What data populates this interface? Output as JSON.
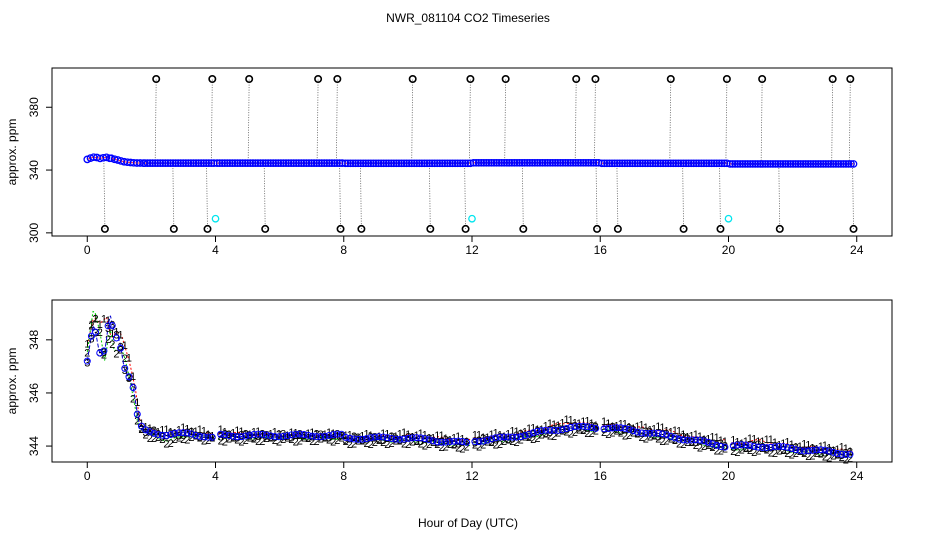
{
  "figure": {
    "title": "NWR_081104  CO2 Timeseries",
    "xlabel": "Hour of Day (UTC)"
  },
  "chart_data": [
    {
      "type": "scatter",
      "title": "NWR_081104  CO2 Timeseries",
      "xlabel": "",
      "ylabel": "approx. ppm",
      "xlim": [
        -1.1,
        25.1
      ],
      "ylim": [
        298,
        405
      ],
      "xticks": [
        0,
        4,
        8,
        12,
        16,
        20,
        24
      ],
      "yticks": [
        300,
        340,
        380
      ],
      "grid": false,
      "series": [
        {
          "color": "#0000ff",
          "marker": "o",
          "segments": [
            {
              "x0": 0.0,
              "x1": 0.7,
              "values": [
                346.8,
                347.6,
                348.2,
                348.0,
                347.4,
                347.8,
                348.1,
                347.5
              ]
            },
            {
              "x0": 0.75,
              "x1": 1.75,
              "values": [
                347.5,
                346.9,
                346.4,
                345.8,
                345.3,
                345.0,
                344.8,
                344.6,
                344.5,
                344.5,
                344.4
              ]
            },
            {
              "x0": 1.8,
              "x1": 3.95,
              "level": 344.4,
              "n": 28
            },
            {
              "x0": 4.05,
              "x1": 7.95,
              "level": 344.4,
              "n": 50
            },
            {
              "x0": 8.05,
              "x1": 11.95,
              "level": 344.3,
              "n": 50
            },
            {
              "x0": 12.05,
              "x1": 15.95,
              "level": 344.6,
              "n": 50
            },
            {
              "x0": 16.05,
              "x1": 19.95,
              "level": 344.3,
              "n": 50
            },
            {
              "x0": 20.05,
              "x1": 23.9,
              "level": 343.9,
              "n": 50
            }
          ]
        },
        {
          "color": "#000000",
          "marker": "o",
          "spikes_high": [
            2.15,
            3.9,
            5.05,
            7.2,
            7.8,
            10.15,
            11.95,
            13.05,
            15.25,
            15.85,
            18.2,
            19.95,
            21.05,
            23.25,
            23.8
          ],
          "spikes_low": [
            0.55,
            2.7,
            3.75,
            5.55,
            7.9,
            8.55,
            10.7,
            11.8,
            13.6,
            15.9,
            16.55,
            18.6,
            19.75,
            21.6,
            23.9
          ],
          "high_value": 398,
          "low_value": 302.5
        },
        {
          "color": "#00e5ee",
          "marker": "o",
          "x": [
            4.0,
            12.0,
            20.0
          ],
          "y": [
            309,
            309,
            309
          ]
        }
      ]
    },
    {
      "type": "scatter",
      "title": "",
      "xlabel": "",
      "ylabel": "approx. ppm",
      "xlim": [
        -1.1,
        25.1
      ],
      "ylim": [
        343.4,
        349.5
      ],
      "xticks": [
        0,
        4,
        8,
        12,
        16,
        20,
        24
      ],
      "yticks": [
        344,
        346,
        348
      ],
      "grid": false,
      "series": [
        {
          "label_char": "1",
          "color": "#ff0000",
          "offset": 0.12,
          "points": [
            [
              0.0,
              347.8
            ],
            [
              0.2,
              348.8
            ],
            [
              0.4,
              348.6
            ],
            [
              0.6,
              348.9
            ],
            [
              0.75,
              348.1
            ],
            [
              0.9,
              348.3
            ],
            [
              1.05,
              348.2
            ],
            [
              1.2,
              347.6
            ],
            [
              1.35,
              347.0
            ],
            [
              1.5,
              346.2
            ],
            [
              1.65,
              344.9
            ],
            [
              1.8,
              344.6
            ],
            [
              2.5,
              344.5
            ],
            [
              3.2,
              344.6
            ],
            [
              3.9,
              344.4
            ],
            [
              4.1,
              344.5
            ],
            [
              6.0,
              344.4
            ],
            [
              7.95,
              344.4
            ],
            [
              8.05,
              344.3
            ],
            [
              10.0,
              344.4
            ],
            [
              11.95,
              344.2
            ],
            [
              12.05,
              344.3
            ],
            [
              13.0,
              344.4
            ],
            [
              14.0,
              344.6
            ],
            [
              15.0,
              344.9
            ],
            [
              15.9,
              344.8
            ],
            [
              16.1,
              344.8
            ],
            [
              17.0,
              344.7
            ],
            [
              18.0,
              344.6
            ],
            [
              19.0,
              344.3
            ],
            [
              19.9,
              344.2
            ],
            [
              20.1,
              344.1
            ],
            [
              21.0,
              344.2
            ],
            [
              22.0,
              344.0
            ],
            [
              23.0,
              343.9
            ],
            [
              23.9,
              343.8
            ]
          ]
        },
        {
          "label_char": "2",
          "color": "#00cd00",
          "offset": -0.1,
          "points": [
            [
              0.0,
              347.5
            ],
            [
              0.2,
              349.2
            ],
            [
              0.4,
              348.3
            ],
            [
              0.55,
              347.2
            ],
            [
              0.7,
              348.5
            ],
            [
              0.85,
              347.5
            ],
            [
              1.0,
              347.7
            ],
            [
              1.15,
              347.4
            ],
            [
              1.3,
              346.7
            ],
            [
              1.45,
              345.8
            ],
            [
              1.6,
              344.7
            ],
            [
              1.8,
              344.5
            ],
            [
              2.5,
              344.2
            ],
            [
              3.2,
              344.4
            ],
            [
              3.9,
              344.3
            ],
            [
              4.1,
              344.3
            ],
            [
              6.0,
              344.3
            ],
            [
              7.95,
              344.3
            ],
            [
              8.05,
              344.2
            ],
            [
              10.0,
              344.2
            ],
            [
              11.95,
              344.0
            ],
            [
              12.05,
              344.1
            ],
            [
              13.0,
              344.2
            ],
            [
              14.0,
              344.4
            ],
            [
              15.0,
              344.6
            ],
            [
              15.9,
              344.6
            ],
            [
              16.1,
              344.6
            ],
            [
              17.0,
              344.5
            ],
            [
              18.0,
              344.3
            ],
            [
              19.0,
              344.1
            ],
            [
              19.9,
              343.9
            ],
            [
              20.1,
              343.9
            ],
            [
              21.0,
              343.9
            ],
            [
              22.0,
              343.8
            ],
            [
              23.0,
              343.7
            ],
            [
              23.9,
              343.6
            ]
          ]
        },
        {
          "label_char": "3",
          "color": "#0000cd",
          "offset": 0.0,
          "points": [
            [
              0.0,
              347.2
            ],
            [
              0.2,
              348.6
            ],
            [
              0.4,
              347.4
            ],
            [
              0.55,
              347.6
            ],
            [
              0.7,
              349.0
            ],
            [
              0.85,
              348.2
            ],
            [
              1.0,
              348.0
            ],
            [
              1.15,
              347.0
            ],
            [
              1.3,
              346.6
            ],
            [
              1.45,
              346.1
            ],
            [
              1.6,
              344.8
            ],
            [
              1.8,
              344.6
            ],
            [
              2.5,
              344.4
            ],
            [
              3.2,
              344.5
            ],
            [
              3.9,
              344.3
            ],
            [
              4.1,
              344.4
            ],
            [
              6.0,
              344.4
            ],
            [
              7.95,
              344.4
            ],
            [
              8.05,
              344.3
            ],
            [
              10.0,
              344.3
            ],
            [
              11.95,
              344.1
            ],
            [
              12.05,
              344.2
            ],
            [
              13.0,
              344.3
            ],
            [
              14.0,
              344.5
            ],
            [
              15.0,
              344.7
            ],
            [
              15.9,
              344.7
            ],
            [
              16.1,
              344.7
            ],
            [
              17.0,
              344.6
            ],
            [
              18.0,
              344.4
            ],
            [
              19.0,
              344.2
            ],
            [
              19.9,
              344.0
            ],
            [
              20.1,
              344.0
            ],
            [
              21.0,
              344.0
            ],
            [
              22.0,
              343.9
            ],
            [
              23.0,
              343.8
            ],
            [
              23.9,
              343.7
            ]
          ]
        }
      ]
    }
  ]
}
